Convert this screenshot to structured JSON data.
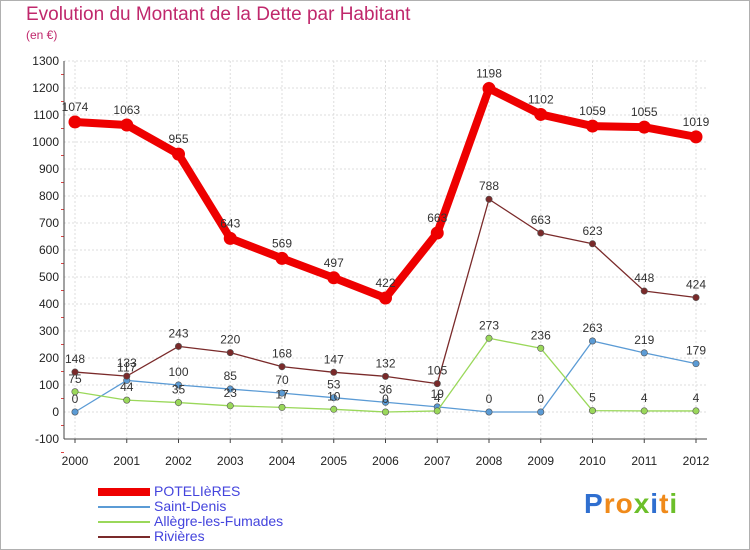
{
  "header": {
    "title": "Evolution du Montant de la Dette par Habitant",
    "subtitle": "(en €)"
  },
  "logo": {
    "text": "Proxiti",
    "letters": [
      "P",
      "r",
      "o",
      "x",
      "i",
      "t",
      "i"
    ],
    "colors": [
      "#2f6fd0",
      "#f08a1a",
      "#f08a1a",
      "#6cbf2a",
      "#2f6fd0",
      "#f08a1a",
      "#6cbf2a"
    ]
  },
  "chart_data": {
    "type": "line",
    "title": "Evolution du Montant de la Dette par Habitant",
    "subtitle": "(en €)",
    "xlabel": "",
    "ylabel": "",
    "x": [
      2000,
      2001,
      2002,
      2003,
      2004,
      2005,
      2006,
      2007,
      2008,
      2009,
      2010,
      2011,
      2012
    ],
    "ylim": [
      -100,
      1300
    ],
    "yticks": [
      -100,
      0,
      100,
      200,
      300,
      400,
      500,
      600,
      700,
      800,
      900,
      1000,
      1100,
      1200,
      1300
    ],
    "grid": true,
    "legend_position": "bottom-left",
    "series": [
      {
        "name": "POTELIèRES",
        "color": "#ee0000",
        "values": [
          1074,
          1063,
          955,
          643,
          569,
          497,
          422,
          663,
          1198,
          1102,
          1059,
          1055,
          1019
        ]
      },
      {
        "name": "Saint-Denis",
        "color": "#5b9bd5",
        "values": [
          0,
          117,
          100,
          85,
          70,
          53,
          36,
          19,
          0,
          0,
          263,
          219,
          179
        ]
      },
      {
        "name": "Allègre-les-Fumades",
        "color": "#9ad85a",
        "values": [
          75,
          44,
          35,
          23,
          17,
          10,
          0,
          4,
          273,
          236,
          5,
          4,
          4
        ]
      },
      {
        "name": "Rivières",
        "color": "#7a2a2a",
        "values": [
          148,
          133,
          243,
          220,
          168,
          147,
          132,
          105,
          788,
          663,
          623,
          448,
          424
        ]
      }
    ]
  }
}
